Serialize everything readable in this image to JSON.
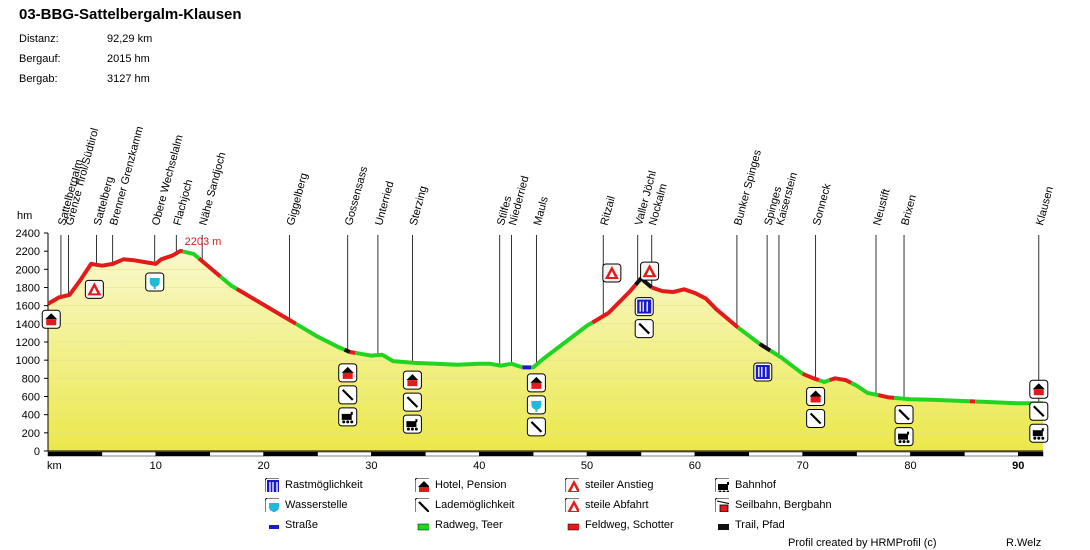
{
  "title": "03-BBG-Sattelbergalm-Klausen",
  "stats": [
    {
      "label": "Distanz:",
      "value": "92,29 km"
    },
    {
      "label": "Bergauf:",
      "value": "2015 hm"
    },
    {
      "label": "Bergab:",
      "value": "3127 hm"
    }
  ],
  "chart_data": {
    "type": "area",
    "title": "03-BBG-Sattelbergalm-Klausen",
    "xlabel": "km",
    "ylabel": "hm",
    "xlim": [
      0,
      92.29
    ],
    "ylim": [
      0,
      2400
    ],
    "x_ticks": [
      10,
      20,
      30,
      40,
      50,
      60,
      70,
      80,
      90
    ],
    "y_ticks": [
      0,
      200,
      400,
      600,
      800,
      1000,
      1200,
      1400,
      1600,
      1800,
      2000,
      2200,
      2400
    ],
    "max_label": "2203 m",
    "max_point": {
      "x": 12.3,
      "y": 2203
    },
    "profile": [
      {
        "x": 0,
        "y": 1620
      },
      {
        "x": 1,
        "y": 1690
      },
      {
        "x": 2,
        "y": 1720
      },
      {
        "x": 3,
        "y": 1880
      },
      {
        "x": 4,
        "y": 2060
      },
      {
        "x": 5,
        "y": 2040
      },
      {
        "x": 6,
        "y": 2060
      },
      {
        "x": 7,
        "y": 2110
      },
      {
        "x": 8,
        "y": 2100
      },
      {
        "x": 9,
        "y": 2080
      },
      {
        "x": 10,
        "y": 2060
      },
      {
        "x": 10.5,
        "y": 2110
      },
      {
        "x": 11.5,
        "y": 2150
      },
      {
        "x": 12.3,
        "y": 2203
      },
      {
        "x": 13.5,
        "y": 2170
      },
      {
        "x": 15,
        "y": 2020
      },
      {
        "x": 17,
        "y": 1820
      },
      {
        "x": 19,
        "y": 1680
      },
      {
        "x": 21,
        "y": 1540
      },
      {
        "x": 23,
        "y": 1400
      },
      {
        "x": 25,
        "y": 1260
      },
      {
        "x": 27,
        "y": 1140
      },
      {
        "x": 28,
        "y": 1090
      },
      {
        "x": 29,
        "y": 1070
      },
      {
        "x": 30,
        "y": 1050
      },
      {
        "x": 31,
        "y": 1060
      },
      {
        "x": 32,
        "y": 990
      },
      {
        "x": 34,
        "y": 970
      },
      {
        "x": 36,
        "y": 960
      },
      {
        "x": 38,
        "y": 950
      },
      {
        "x": 40,
        "y": 960
      },
      {
        "x": 41,
        "y": 960
      },
      {
        "x": 42,
        "y": 940
      },
      {
        "x": 43,
        "y": 960
      },
      {
        "x": 44,
        "y": 920
      },
      {
        "x": 45,
        "y": 920
      },
      {
        "x": 46,
        "y": 1020
      },
      {
        "x": 48,
        "y": 1200
      },
      {
        "x": 50,
        "y": 1380
      },
      {
        "x": 52,
        "y": 1520
      },
      {
        "x": 54,
        "y": 1760
      },
      {
        "x": 55,
        "y": 1900
      },
      {
        "x": 56,
        "y": 1800
      },
      {
        "x": 57,
        "y": 1760
      },
      {
        "x": 58,
        "y": 1750
      },
      {
        "x": 59,
        "y": 1780
      },
      {
        "x": 60,
        "y": 1740
      },
      {
        "x": 61,
        "y": 1680
      },
      {
        "x": 62,
        "y": 1560
      },
      {
        "x": 64,
        "y": 1360
      },
      {
        "x": 66,
        "y": 1180
      },
      {
        "x": 68,
        "y": 1030
      },
      {
        "x": 70,
        "y": 850
      },
      {
        "x": 71,
        "y": 800
      },
      {
        "x": 72,
        "y": 760
      },
      {
        "x": 73,
        "y": 800
      },
      {
        "x": 74,
        "y": 780
      },
      {
        "x": 75,
        "y": 720
      },
      {
        "x": 76,
        "y": 640
      },
      {
        "x": 78,
        "y": 590
      },
      {
        "x": 80,
        "y": 570
      },
      {
        "x": 82,
        "y": 565
      },
      {
        "x": 84,
        "y": 555
      },
      {
        "x": 86,
        "y": 545
      },
      {
        "x": 88,
        "y": 535
      },
      {
        "x": 90,
        "y": 525
      },
      {
        "x": 92.29,
        "y": 525
      }
    ],
    "surface_segments": [
      {
        "from": 0,
        "to": 12.5,
        "type": "Feldweg, Schotter"
      },
      {
        "from": 12.5,
        "to": 14,
        "type": "Radweg, Teer"
      },
      {
        "from": 14,
        "to": 16,
        "type": "Feldweg, Schotter"
      },
      {
        "from": 16,
        "to": 17.5,
        "type": "Radweg, Teer"
      },
      {
        "from": 17.5,
        "to": 23,
        "type": "Feldweg, Schotter"
      },
      {
        "from": 23,
        "to": 27.5,
        "type": "Radweg, Teer"
      },
      {
        "from": 27.5,
        "to": 28,
        "type": "Trail, Pfad"
      },
      {
        "from": 28,
        "to": 28.5,
        "type": "Feldweg, Schotter"
      },
      {
        "from": 28.5,
        "to": 44,
        "type": "Radweg, Teer"
      },
      {
        "from": 44,
        "to": 44.8,
        "type": "Straße"
      },
      {
        "from": 44.8,
        "to": 50.5,
        "type": "Radweg, Teer"
      },
      {
        "from": 50.5,
        "to": 54.5,
        "type": "Feldweg, Schotter"
      },
      {
        "from": 54.5,
        "to": 56,
        "type": "Trail, Pfad"
      },
      {
        "from": 56,
        "to": 64,
        "type": "Feldweg, Schotter"
      },
      {
        "from": 64,
        "to": 66,
        "type": "Radweg, Teer"
      },
      {
        "from": 66,
        "to": 67,
        "type": "Trail, Pfad"
      },
      {
        "from": 67,
        "to": 70,
        "type": "Radweg, Teer"
      },
      {
        "from": 70,
        "to": 71.5,
        "type": "Feldweg, Schotter"
      },
      {
        "from": 71.5,
        "to": 72.5,
        "type": "Radweg, Teer"
      },
      {
        "from": 72.5,
        "to": 74.5,
        "type": "Feldweg, Schotter"
      },
      {
        "from": 74.5,
        "to": 77,
        "type": "Radweg, Teer"
      },
      {
        "from": 77,
        "to": 78.5,
        "type": "Feldweg, Schotter"
      },
      {
        "from": 78.5,
        "to": 85.5,
        "type": "Radweg, Teer"
      },
      {
        "from": 85.5,
        "to": 86,
        "type": "Feldweg, Schotter"
      },
      {
        "from": 86,
        "to": 92.29,
        "type": "Radweg, Teer"
      }
    ],
    "waypoints": [
      {
        "name": "Sattelbergalm",
        "km": 1.2
      },
      {
        "name": "Grenze Tirol/Südtirol",
        "km": 1.9
      },
      {
        "name": "Sattelberg",
        "km": 4.5
      },
      {
        "name": "Brenner Grenzkamm",
        "km": 6.0
      },
      {
        "name": "Obere Wechselalm",
        "km": 9.9
      },
      {
        "name": "Flachjoch",
        "km": 11.9
      },
      {
        "name": "Nähe Sandjoch",
        "km": 14.3
      },
      {
        "name": "Giggelberg",
        "km": 22.4
      },
      {
        "name": "Gossensass",
        "km": 27.8
      },
      {
        "name": "Unterried",
        "km": 30.6
      },
      {
        "name": "Sterzing",
        "km": 33.8
      },
      {
        "name": "Stilfes",
        "km": 41.9
      },
      {
        "name": "Niederried",
        "km": 43.0
      },
      {
        "name": "Mauls",
        "km": 45.3
      },
      {
        "name": "Ritzail",
        "km": 51.5
      },
      {
        "name": "Valler Jöchl",
        "km": 54.7
      },
      {
        "name": "Nockalm",
        "km": 56.0
      },
      {
        "name": "Bunker Spinges",
        "km": 63.9
      },
      {
        "name": "Spinges",
        "km": 66.7
      },
      {
        "name": "Kaiserstein",
        "km": 67.8
      },
      {
        "name": "Sonneck",
        "km": 71.2
      },
      {
        "name": "Neustift",
        "km": 76.8
      },
      {
        "name": "Brixen",
        "km": 79.4
      },
      {
        "name": "Klausen",
        "km": 91.9
      }
    ],
    "icon_markers": [
      {
        "km": 0.3,
        "elev": 1450,
        "icons": [
          "hotel"
        ]
      },
      {
        "km": 4.3,
        "elev": 1780,
        "icons": [
          "steep-ascent"
        ]
      },
      {
        "km": 9.9,
        "elev": 1860,
        "icons": [
          "water"
        ]
      },
      {
        "km": 27.8,
        "elev": 860,
        "icons": [
          "hotel",
          "charging",
          "train"
        ]
      },
      {
        "km": 33.8,
        "elev": 780,
        "icons": [
          "hotel",
          "charging",
          "train"
        ]
      },
      {
        "km": 45.3,
        "elev": 750,
        "icons": [
          "hotel",
          "water",
          "charging"
        ]
      },
      {
        "km": 52.3,
        "elev": 1960,
        "icons": [
          "steep-ascent"
        ]
      },
      {
        "km": 55.8,
        "elev": 1980,
        "icons": [
          "steep-descent"
        ]
      },
      {
        "km": 55.3,
        "elev": 1590,
        "icons": [
          "rest",
          "charging"
        ]
      },
      {
        "km": 66.3,
        "elev": 870,
        "icons": [
          "rest"
        ]
      },
      {
        "km": 71.2,
        "elev": 600,
        "icons": [
          "hotel",
          "charging"
        ]
      },
      {
        "km": 79.4,
        "elev": 400,
        "icons": [
          "charging",
          "train"
        ]
      },
      {
        "km": 91.9,
        "elev": 680,
        "icons": [
          "hotel",
          "charging",
          "train"
        ]
      }
    ],
    "legend": [
      {
        "label": "Rastmöglichkeit",
        "icon": "rest"
      },
      {
        "label": "Hotel, Pension",
        "icon": "hotel"
      },
      {
        "label": "steiler Anstieg",
        "icon": "steep-ascent"
      },
      {
        "label": "Bahnhof",
        "icon": "train"
      },
      {
        "label": "Wasserstelle",
        "icon": "water"
      },
      {
        "label": "Lademöglichkeit",
        "icon": "charging"
      },
      {
        "label": "steile Abfahrt",
        "icon": "steep-descent"
      },
      {
        "label": "Seilbahn, Bergbahn",
        "icon": "cable-car"
      },
      {
        "label": "Straße",
        "icon": "road-swatch"
      },
      {
        "label": "Radweg, Teer",
        "icon": "bikeway-swatch"
      },
      {
        "label": "Feldweg, Schotter",
        "icon": "gravel-swatch"
      },
      {
        "label": "Trail, Pfad",
        "icon": "trail-swatch"
      }
    ]
  },
  "colors": {
    "Feldweg, Schotter": "#e21a1a",
    "Radweg, Teer": "#22d422",
    "Straße": "#1a1acc",
    "Trail, Pfad": "#111111",
    "axis": "#000000",
    "max_label": "#e21a1a",
    "rest_icon": "#1a1acc",
    "water_icon": "#22b8d8"
  },
  "credit": "Profil created by HRMProfil (c)",
  "author": "R.Welz"
}
